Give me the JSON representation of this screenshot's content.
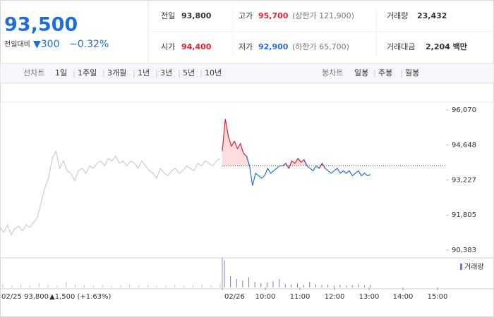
{
  "header": {
    "price": "93,500",
    "change_label": "전일대비",
    "change": "▼300",
    "change_pct": "−0.32%",
    "stats": [
      {
        "label": "전일",
        "value": "93,800"
      },
      {
        "label": "고가",
        "value": "95,700",
        "note": "(상한가 121,900)"
      },
      {
        "label": "거래량",
        "value": "23,432"
      },
      {
        "label": "시가",
        "value": "94,400"
      },
      {
        "label": "저가",
        "value": "92,900",
        "note": "(하한가 65,700)"
      },
      {
        "label": "거래대금",
        "value": "2,204 백만"
      }
    ]
  },
  "tabs": {
    "line_label": "선차트",
    "periods": [
      "1일",
      "1주일",
      "3개월",
      "1년",
      "3년",
      "5년",
      "10년"
    ],
    "candle_label": "봉차트",
    "candles": [
      "일봉",
      "주봉",
      "월봉"
    ]
  },
  "chart_data": {
    "type": "line",
    "ylim": [
      90383,
      96070
    ],
    "yticks": [
      {
        "value": 96070,
        "label": "96,070"
      },
      {
        "value": 94648,
        "label": "94,648"
      },
      {
        "value": 93227,
        "label": "93,227"
      },
      {
        "value": 91805,
        "label": "91,805"
      },
      {
        "value": 90383,
        "label": "90,383"
      }
    ],
    "reference": 93800,
    "prev_day": {
      "date": "02/25",
      "close": "93,800",
      "change": "▲1,500 (+1.63%)",
      "color": "#c4c4c4",
      "values": [
        91300,
        91100,
        91400,
        91000,
        91250,
        91350,
        91150,
        91400,
        91300,
        91500,
        91700,
        92300,
        92900,
        93300,
        94100,
        94400,
        93700,
        94000,
        93600,
        93500,
        93200,
        93600,
        93700,
        93500,
        93800,
        93700,
        93900,
        94000,
        93800,
        94100,
        94000,
        94200,
        93900,
        94000,
        93800,
        94000,
        93900,
        93700,
        94000,
        93800,
        93600,
        93500,
        93300,
        93700,
        93500,
        93400,
        93600,
        93700,
        93500,
        93600,
        93800,
        93700,
        93600,
        93900,
        93800,
        94000,
        93900,
        93800,
        94000,
        94100
      ]
    },
    "today": {
      "date": "02/26",
      "up_color": "#e8202a",
      "down_color": "#1f6fd6",
      "values": [
        94400,
        95700,
        95000,
        94600,
        94800,
        94500,
        94700,
        94300,
        94200,
        93800,
        93000,
        93500,
        93400,
        93300,
        93400,
        93700,
        93500,
        93600,
        93700,
        93800,
        93800,
        93900,
        93700,
        94000,
        93900,
        94100,
        93950,
        94050,
        93800,
        93700,
        93600,
        93800,
        93700,
        93900,
        93700,
        93600,
        93500,
        93600,
        93700,
        93500,
        93600,
        93500,
        93600,
        93400,
        93500,
        93600,
        93400,
        93500,
        93400,
        93450
      ]
    },
    "time_labels": [
      "10:00",
      "11:00",
      "12:00",
      "13:00",
      "14:00",
      "15:00"
    ],
    "volume": {
      "name": "거래량",
      "color": "#8a6fc7",
      "ylim": [
        0,
        100
      ],
      "prev": [
        10,
        8,
        12,
        6,
        15,
        9,
        7,
        20,
        11,
        8,
        6,
        9,
        5,
        7,
        10,
        6,
        8,
        5,
        7,
        9,
        6,
        8,
        10,
        7,
        12
      ],
      "today": [
        95,
        40,
        30,
        25,
        35,
        20,
        15,
        18,
        22,
        30,
        12,
        10,
        14,
        9,
        20,
        11,
        8,
        10,
        7,
        9,
        6,
        8,
        12,
        7,
        9
      ]
    }
  }
}
